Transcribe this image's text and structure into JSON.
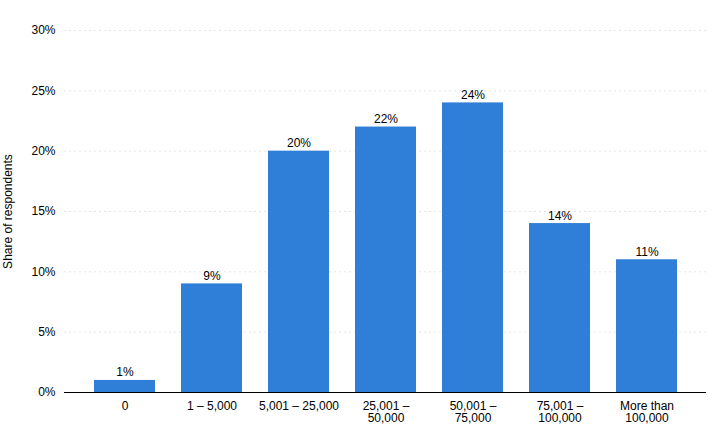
{
  "chart_data": {
    "type": "bar",
    "categories": [
      "0",
      "1 – 5,000",
      "5,001 – 25,000",
      "25,001 –\n50,000",
      "50,001 –\n75,000",
      "75,001 –\n100,000",
      "More than\n100,000"
    ],
    "values": [
      1,
      9,
      20,
      22,
      24,
      14,
      11
    ],
    "value_labels": [
      "1%",
      "9%",
      "20%",
      "22%",
      "24%",
      "14%",
      "11%"
    ],
    "data_labels": true,
    "color": "#2f7ed8",
    "ylabel": "Share of respondents",
    "ylim": [
      0,
      30
    ],
    "yticks": [
      {
        "value": 0,
        "label": "0%"
      },
      {
        "value": 5,
        "label": "5%"
      },
      {
        "value": 10,
        "label": "10%"
      },
      {
        "value": 15,
        "label": "15%"
      },
      {
        "value": 20,
        "label": "20%"
      },
      {
        "value": 25,
        "label": "25%"
      },
      {
        "value": 30,
        "label": "30%"
      }
    ],
    "grid": true
  }
}
